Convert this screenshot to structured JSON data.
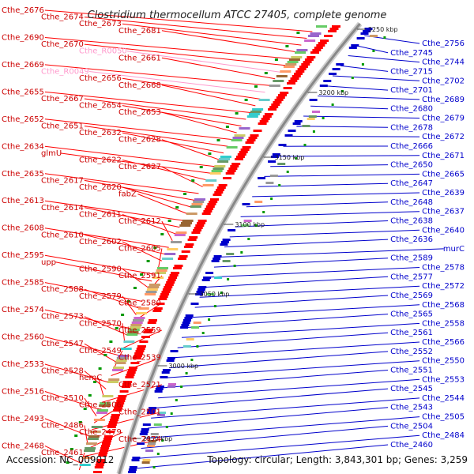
{
  "title": "Clostridium thermocellum ATCC 27405, complete genome",
  "accession": "Accession: NC_009012",
  "topology": "Topology: circular; Length: 3,843,301 bp; Genes: 3,259",
  "colors": {
    "forward": "#ff0000",
    "reverse": "#0000cc",
    "backbone": "#888888",
    "rna": "#ff99cc",
    "tick": "#009900"
  },
  "ticks": [
    "3250 kbp",
    "3200 kbp",
    "3150 kbp",
    "3100 kbp",
    "3050 kbp",
    "3000 kbp",
    "2950 kbp"
  ],
  "left_labels": [
    "Cthe_2676",
    "Cthe_2674",
    "Cthe_2673",
    "Cthe_2681",
    "Cthe_2690",
    "Cthe_2670",
    "Cthe_R0050",
    "Cthe_2661",
    "Cthe_2669",
    "Cthe_R0049",
    "Cthe_2656",
    "Cthe_2668",
    "Cthe_2655",
    "Cthe_2667",
    "Cthe_2654",
    "Cthe_2653",
    "Cthe_2652",
    "Cthe_2651",
    "Cthe_2632",
    "Cthe_2628",
    "Cthe_2634",
    "glmU",
    "Cthe_2622",
    "Cthe_2627",
    "Cthe_2635",
    "Cthe_2617",
    "Cthe_2620",
    "fabZ",
    "Cthe_2613",
    "Cthe_2614",
    "Cthe_2611",
    "Cthe_2612",
    "Cthe_2608",
    "Cthe_2610",
    "Cthe_2602",
    "Cthe_2605",
    "Cthe_2595",
    "upp",
    "Cthe_2590",
    "Cthe_2591",
    "Cthe_2585",
    "Cthe_2588",
    "Cthe_2579",
    "Cthe_2580",
    "Cthe_2574",
    "Cthe_2573",
    "Cthe_2570",
    "Cthe_2559",
    "Cthe_2560",
    "Cthe_2547",
    "Cthe_2549",
    "Cthe_2539",
    "Cthe_2533",
    "Cthe_2528",
    "hemC",
    "Cthe_2521",
    "Cthe_2516",
    "Cthe_2510",
    "Cthe_2506",
    "Cthe_2501",
    "Cthe_2493",
    "Cthe_2486",
    "Cthe_2479",
    "Cthe_2474",
    "Cthe_2468",
    "Cthe_2461"
  ],
  "right_labels": [
    "Cthe_2756",
    "Cthe_2745",
    "Cthe_2744",
    "Cthe_2715",
    "Cthe_2702",
    "Cthe_2701",
    "Cthe_2689",
    "Cthe_2680",
    "Cthe_2679",
    "Cthe_2678",
    "Cthe_2672",
    "Cthe_2666",
    "Cthe_2671",
    "Cthe_2650",
    "Cthe_2665",
    "Cthe_2647",
    "Cthe_2639",
    "Cthe_2648",
    "Cthe_2637",
    "Cthe_2638",
    "Cthe_2640",
    "Cthe_2636",
    "murC",
    "Cthe_2589",
    "Cthe_2578",
    "Cthe_2577",
    "Cthe_2572",
    "Cthe_2569",
    "Cthe_2568",
    "Cthe_2565",
    "Cthe_2558",
    "Cthe_2561",
    "Cthe_2566",
    "Cthe_2552",
    "Cthe_2550",
    "Cthe_2551",
    "Cthe_2553",
    "Cthe_2545",
    "Cthe_2544",
    "Cthe_2543",
    "Cthe_2505",
    "Cthe_2504",
    "Cthe_2484",
    "Cthe_2460"
  ]
}
